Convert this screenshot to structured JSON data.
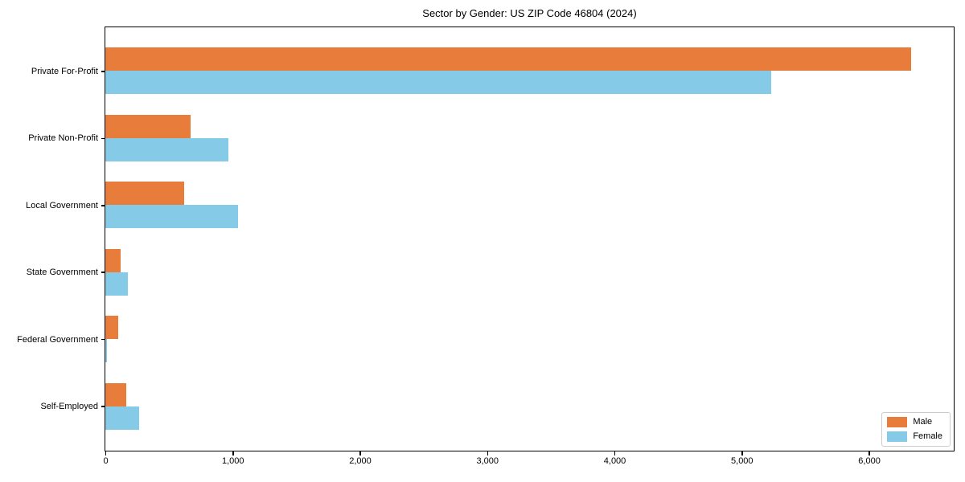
{
  "chart_data": {
    "type": "bar",
    "orientation": "horizontal",
    "title": "Sector by Gender: US ZIP Code 46804 (2024)",
    "categories": [
      "Private For-Profit",
      "Private Non-Profit",
      "Local Government",
      "State Government",
      "Federal Government",
      "Self-Employed"
    ],
    "series": [
      {
        "name": "Male",
        "color": "#e87d3b",
        "values": [
          6330,
          670,
          620,
          118,
          98,
          167
        ]
      },
      {
        "name": "Female",
        "color": "#85cbe8",
        "values": [
          5230,
          965,
          1045,
          176,
          15,
          268
        ]
      }
    ],
    "xlim": [
      0,
      6660
    ],
    "xticks": [
      0,
      1000,
      2000,
      3000,
      4000,
      5000,
      6000
    ],
    "xtick_labels": [
      "0",
      "1,000",
      "2,000",
      "3,000",
      "4,000",
      "5,000",
      "6,000"
    ],
    "xlabel": "",
    "ylabel": "",
    "grid": false,
    "legend_position": "lower right",
    "spine_color": "#000000",
    "background_color": "#ffffff"
  }
}
